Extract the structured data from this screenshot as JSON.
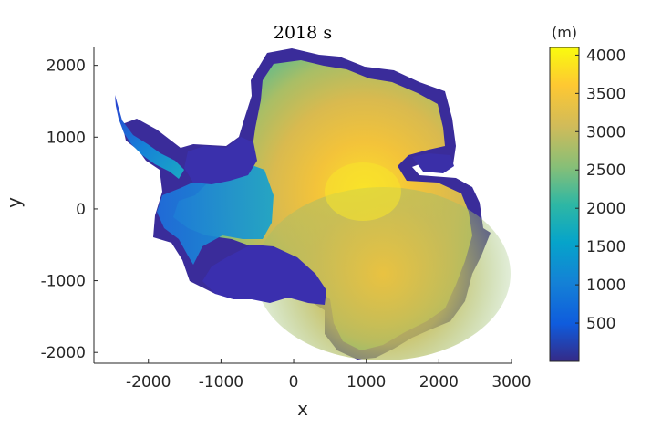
{
  "figure": {
    "title": "2018 s",
    "xlabel": "x",
    "ylabel": "y"
  },
  "axes": {
    "xlim": [
      -2750,
      3000
    ],
    "ylim": [
      -2150,
      2250
    ],
    "xticks": [
      -2000,
      -1000,
      0,
      1000,
      2000,
      3000
    ],
    "yticks": [
      -2000,
      -1000,
      0,
      1000,
      2000
    ],
    "xtick_labels": [
      "-2000",
      "-1000",
      "0",
      "1000",
      "2000",
      "3000"
    ],
    "ytick_labels": [
      "-2000",
      "-1000",
      "0",
      "1000",
      "2000"
    ]
  },
  "colorbar": {
    "unit_label": "(m)",
    "range": [
      0,
      4100
    ],
    "ticks": [
      500,
      1000,
      1500,
      2000,
      2500,
      3000,
      3500,
      4000
    ],
    "tick_labels": [
      "500",
      "1000",
      "1500",
      "2000",
      "2500",
      "3000",
      "3500",
      "4000"
    ],
    "colormap": "parula",
    "colors": [
      "#352a87",
      "#0f5cdd",
      "#1481d6",
      "#06a4ca",
      "#2eb7a4",
      "#87bf77",
      "#d1bb59",
      "#fec832",
      "#f9fb0e"
    ]
  },
  "map": {
    "subject": "surface elevation",
    "outline_color": "#3a2c9a",
    "low_color": "#3d35b8",
    "high_color": "#f6dd2c"
  }
}
